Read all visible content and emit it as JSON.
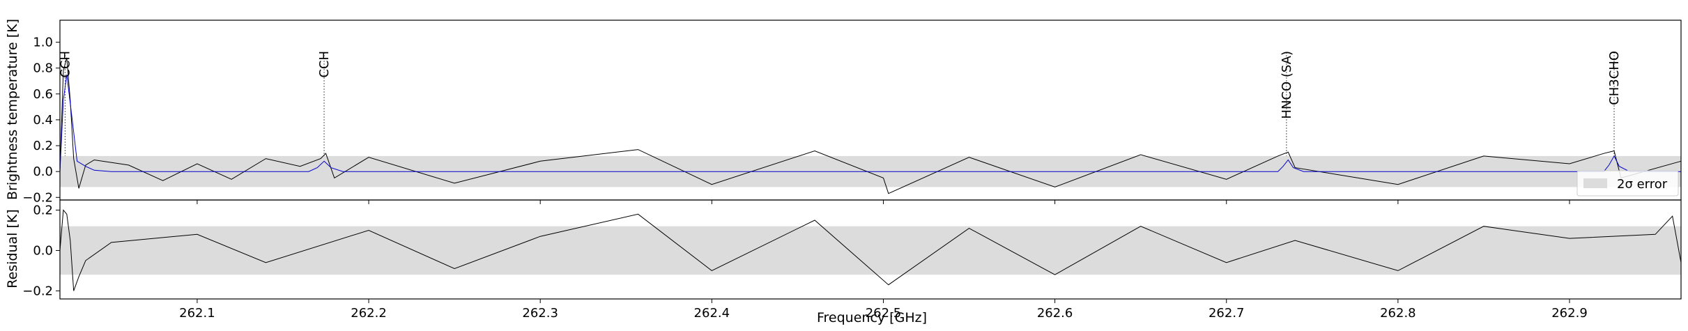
{
  "chart_data": {
    "type": "line",
    "xlabel": "Frequency [GHz]",
    "xlim": [
      262.02,
      262.965
    ],
    "xticks": [
      262.1,
      262.2,
      262.3,
      262.4,
      262.5,
      262.6,
      262.7,
      262.8,
      262.9
    ],
    "xtick_labels": [
      "262.1",
      "262.2",
      "262.3",
      "262.4",
      "262.5",
      "262.6",
      "262.7",
      "262.8",
      "262.9"
    ],
    "grid": false,
    "panels": [
      {
        "ylabel": "Brightness temperature [K]",
        "ylim": [
          -0.22,
          1.17
        ],
        "yticks": [
          -0.2,
          0.0,
          0.2,
          0.4,
          0.6,
          0.8,
          1.0
        ],
        "ytick_labels": [
          "−0.2",
          "0.0",
          "0.2",
          "0.4",
          "0.6",
          "0.8",
          "1.0"
        ],
        "error_band": [
          -0.12,
          0.12
        ],
        "legend": {
          "location": "lower right",
          "entries": [
            "2σ error"
          ]
        },
        "line_annotations": [
          {
            "label": "CCH",
            "x": 262.023
          },
          {
            "label": "CCH",
            "x": 262.174
          },
          {
            "label": "HNCO (SA)",
            "x": 262.735
          },
          {
            "label": "CH3CHO",
            "x": 262.926
          }
        ],
        "series": [
          {
            "role": "observed",
            "color": "#000000",
            "x": [
              262.02,
              262.022,
              262.024,
              262.026,
              262.028,
              262.031,
              262.035,
              262.04,
              262.06,
              262.08,
              262.1,
              262.12,
              262.14,
              262.16,
              262.172,
              262.175,
              262.18,
              262.2,
              262.25,
              262.3,
              262.357,
              262.4,
              262.46,
              262.5,
              262.503,
              262.55,
              262.6,
              262.65,
              262.7,
              262.73,
              262.736,
              262.74,
              262.8,
              262.85,
              262.9,
              262.92,
              262.926,
              262.93,
              262.965
            ],
            "y": [
              0.0,
              0.78,
              0.88,
              0.55,
              0.1,
              -0.13,
              0.05,
              0.09,
              0.05,
              -0.07,
              0.06,
              -0.06,
              0.1,
              0.04,
              0.1,
              0.14,
              -0.05,
              0.11,
              -0.09,
              0.08,
              0.17,
              -0.1,
              0.16,
              -0.05,
              -0.17,
              0.11,
              -0.12,
              0.13,
              -0.06,
              0.12,
              0.15,
              0.03,
              -0.1,
              0.12,
              0.06,
              0.14,
              0.16,
              -0.05,
              0.08
            ]
          },
          {
            "role": "model",
            "color": "#0000cc",
            "x": [
              262.02,
              262.022,
              262.024,
              262.027,
              262.03,
              262.035,
              262.04,
              262.05,
              262.165,
              262.17,
              262.174,
              262.178,
              262.185,
              262.73,
              262.733,
              262.736,
              262.739,
              262.745,
              262.92,
              262.923,
              262.926,
              262.929,
              262.935,
              262.965
            ],
            "y": [
              0.0,
              0.55,
              0.75,
              0.42,
              0.08,
              0.04,
              0.01,
              0.0,
              0.0,
              0.03,
              0.08,
              0.03,
              0.0,
              0.0,
              0.04,
              0.09,
              0.03,
              0.0,
              0.0,
              0.05,
              0.12,
              0.04,
              0.0,
              0.0
            ]
          }
        ]
      },
      {
        "ylabel": "Residual [K]",
        "ylim": [
          -0.24,
          0.25
        ],
        "yticks": [
          -0.2,
          0.0,
          0.2
        ],
        "ytick_labels": [
          "−0.2",
          "0.0",
          "0.2"
        ],
        "error_band": [
          -0.12,
          0.12
        ],
        "series": [
          {
            "role": "residual",
            "color": "#000000",
            "x": [
              262.02,
              262.022,
              262.024,
              262.026,
              262.028,
              262.031,
              262.035,
              262.05,
              262.1,
              262.14,
              262.2,
              262.25,
              262.3,
              262.357,
              262.4,
              262.46,
              262.503,
              262.55,
              262.6,
              262.65,
              262.7,
              262.74,
              262.8,
              262.85,
              262.9,
              262.95,
              262.96,
              262.965
            ],
            "y": [
              0.0,
              0.2,
              0.18,
              0.05,
              -0.2,
              -0.13,
              -0.05,
              0.04,
              0.08,
              -0.06,
              0.1,
              -0.09,
              0.07,
              0.18,
              -0.1,
              0.15,
              -0.17,
              0.11,
              -0.12,
              0.12,
              -0.06,
              0.05,
              -0.1,
              0.12,
              0.06,
              0.08,
              0.17,
              -0.06
            ]
          }
        ]
      }
    ]
  }
}
